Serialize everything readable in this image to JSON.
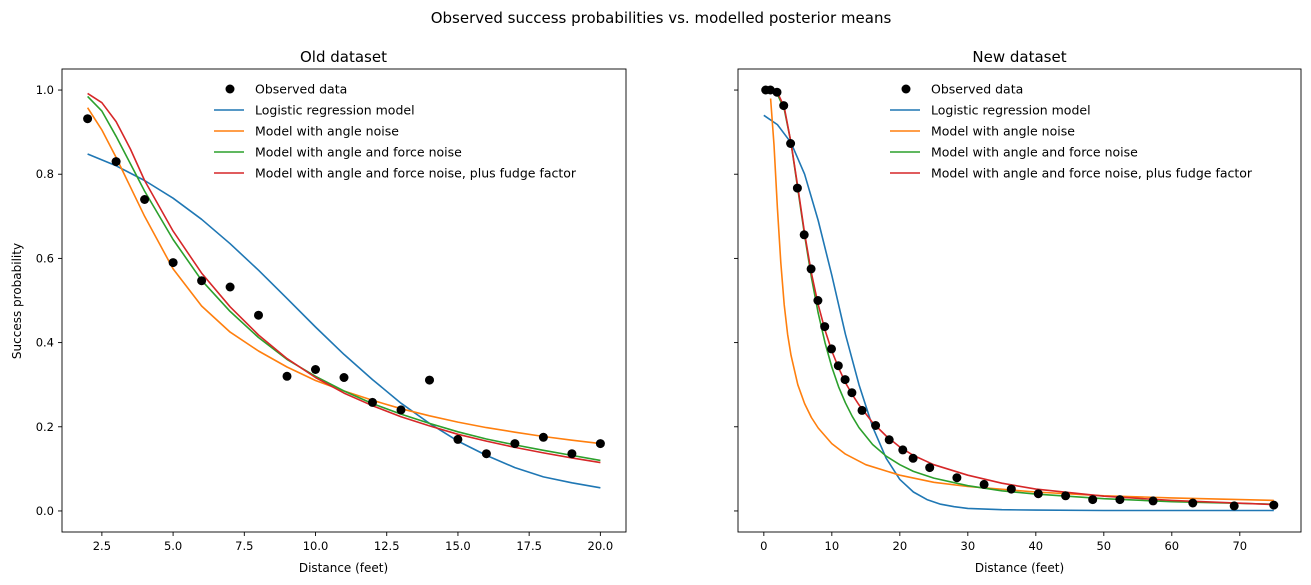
{
  "figure_title": "Observed success probabilities vs. modelled posterior means",
  "legend_labels": [
    "Observed data",
    "Logistic regression model",
    "Model with angle noise",
    "Model with angle and force noise",
    "Model with angle and force noise, plus fudge factor"
  ],
  "colors": {
    "observed": "#000000",
    "logistic": "#1f77b4",
    "angle": "#ff7f0e",
    "angle_force": "#2ca02c",
    "fudge": "#d62728"
  },
  "chart_data": [
    {
      "type": "line",
      "title": "Old dataset",
      "xlabel": "Distance (feet)",
      "ylabel": "Success probability",
      "xlim": [
        1.1,
        20.9
      ],
      "ylim": [
        -0.05,
        1.05
      ],
      "xticks": [
        2.5,
        5.0,
        7.5,
        10.0,
        12.5,
        15.0,
        17.5,
        20.0
      ],
      "xtick_labels": [
        "2.5",
        "5.0",
        "7.5",
        "10.0",
        "12.5",
        "15.0",
        "17.5",
        "20.0"
      ],
      "yticks": [
        0.0,
        0.2,
        0.4,
        0.6,
        0.8,
        1.0
      ],
      "ytick_labels": [
        "0.0",
        "0.2",
        "0.4",
        "0.6",
        "0.8",
        "1.0"
      ],
      "legend_position": "upper-center",
      "observed": {
        "x": [
          2,
          3,
          4,
          5,
          6,
          7,
          8,
          9,
          10,
          11,
          12,
          13,
          14,
          15,
          16,
          17,
          18,
          19,
          20
        ],
        "y": [
          0.932,
          0.83,
          0.74,
          0.59,
          0.547,
          0.532,
          0.465,
          0.32,
          0.336,
          0.317,
          0.258,
          0.24,
          0.311,
          0.17,
          0.136,
          0.16,
          0.175,
          0.136,
          0.16
        ]
      },
      "series": [
        {
          "key": "logistic",
          "x": [
            2,
            3,
            4,
            5,
            6,
            7,
            8,
            9,
            10,
            11,
            12,
            13,
            14,
            15,
            16,
            17,
            18,
            19,
            20
          ],
          "y": [
            0.848,
            0.82,
            0.785,
            0.743,
            0.693,
            0.635,
            0.572,
            0.505,
            0.437,
            0.372,
            0.312,
            0.256,
            0.208,
            0.166,
            0.132,
            0.103,
            0.081,
            0.067,
            0.055
          ]
        },
        {
          "key": "angle",
          "x": [
            2,
            2.5,
            3,
            4,
            5,
            6,
            7,
            8,
            9,
            10,
            11,
            12,
            13,
            14,
            15,
            16,
            17,
            18,
            19,
            20
          ],
          "y": [
            0.958,
            0.905,
            0.84,
            0.7,
            0.575,
            0.487,
            0.425,
            0.38,
            0.342,
            0.31,
            0.285,
            0.263,
            0.243,
            0.226,
            0.211,
            0.198,
            0.187,
            0.177,
            0.168,
            0.16
          ]
        },
        {
          "key": "angle_force",
          "x": [
            2,
            2.5,
            3,
            3.5,
            4,
            5,
            6,
            7,
            8,
            9,
            10,
            11,
            12,
            13,
            14,
            15,
            16,
            17,
            18,
            19,
            20
          ],
          "y": [
            0.985,
            0.95,
            0.89,
            0.825,
            0.76,
            0.645,
            0.548,
            0.474,
            0.412,
            0.36,
            0.32,
            0.285,
            0.255,
            0.23,
            0.208,
            0.188,
            0.171,
            0.157,
            0.144,
            0.132,
            0.12
          ]
        },
        {
          "key": "fudge",
          "x": [
            2,
            2.5,
            3,
            3.5,
            4,
            5,
            6,
            7,
            8,
            9,
            10,
            11,
            12,
            13,
            14,
            15,
            16,
            17,
            18,
            19,
            20
          ],
          "y": [
            0.992,
            0.97,
            0.925,
            0.86,
            0.785,
            0.665,
            0.565,
            0.485,
            0.418,
            0.362,
            0.317,
            0.28,
            0.25,
            0.224,
            0.202,
            0.182,
            0.166,
            0.151,
            0.138,
            0.126,
            0.115
          ]
        }
      ]
    },
    {
      "type": "line",
      "title": "New dataset",
      "xlabel": "Distance (feet)",
      "ylabel": "",
      "xlim": [
        -3.8,
        79.0
      ],
      "ylim": [
        -0.05,
        1.05
      ],
      "xticks": [
        0,
        10,
        20,
        30,
        40,
        50,
        60,
        70
      ],
      "xtick_labels": [
        "0",
        "10",
        "20",
        "30",
        "40",
        "50",
        "60",
        "70"
      ],
      "yticks": [
        0.0,
        0.2,
        0.4,
        0.6,
        0.8,
        1.0
      ],
      "ytick_labels": [],
      "legend_position": "upper-center",
      "observed": {
        "x": [
          0.28,
          0.97,
          1.93,
          2.92,
          3.93,
          4.94,
          5.94,
          6.95,
          7.95,
          8.95,
          9.95,
          10.95,
          11.95,
          12.95,
          14.43,
          16.43,
          18.44,
          20.44,
          21.95,
          24.39,
          28.4,
          32.39,
          36.39,
          40.37,
          44.38,
          48.37,
          52.36,
          57.25,
          63.08,
          69.18,
          75.0
        ],
        "y": [
          1.0,
          1.0,
          0.995,
          0.963,
          0.873,
          0.767,
          0.656,
          0.575,
          0.5,
          0.438,
          0.385,
          0.345,
          0.312,
          0.281,
          0.239,
          0.203,
          0.169,
          0.145,
          0.125,
          0.103,
          0.079,
          0.063,
          0.052,
          0.041,
          0.036,
          0.027,
          0.027,
          0.024,
          0.019,
          0.012,
          0.014
        ]
      },
      "series": [
        {
          "key": "logistic",
          "x": [
            0,
            2,
            4,
            6,
            8,
            10,
            12,
            14,
            16,
            18,
            20,
            22,
            24,
            26,
            28,
            30,
            35,
            40,
            50,
            60,
            75
          ],
          "y": [
            0.94,
            0.918,
            0.875,
            0.8,
            0.69,
            0.56,
            0.42,
            0.3,
            0.2,
            0.125,
            0.075,
            0.045,
            0.027,
            0.016,
            0.01,
            0.006,
            0.003,
            0.002,
            0.001,
            0.001,
            0.001
          ]
        },
        {
          "key": "angle",
          "x": [
            1,
            1.5,
            2,
            2.5,
            3,
            3.5,
            4,
            5,
            6,
            7,
            8,
            10,
            12,
            15,
            20,
            25,
            30,
            40,
            50,
            60,
            75
          ],
          "y": [
            0.98,
            0.87,
            0.72,
            0.59,
            0.49,
            0.42,
            0.37,
            0.3,
            0.255,
            0.222,
            0.197,
            0.16,
            0.135,
            0.11,
            0.085,
            0.068,
            0.058,
            0.045,
            0.036,
            0.031,
            0.025
          ]
        },
        {
          "key": "angle_force",
          "x": [
            2,
            3,
            4,
            5,
            6,
            7,
            8,
            9,
            10,
            11,
            12,
            13,
            14,
            16,
            18,
            20,
            22,
            25,
            30,
            35,
            40,
            50,
            60,
            75
          ],
          "y": [
            0.99,
            0.955,
            0.875,
            0.765,
            0.655,
            0.555,
            0.47,
            0.4,
            0.342,
            0.295,
            0.257,
            0.225,
            0.198,
            0.158,
            0.13,
            0.11,
            0.094,
            0.078,
            0.06,
            0.048,
            0.04,
            0.029,
            0.022,
            0.016
          ]
        },
        {
          "key": "fudge",
          "x": [
            2,
            3,
            4,
            5,
            6,
            7,
            8,
            9,
            10,
            11,
            12,
            13,
            14,
            16,
            18,
            20,
            22,
            25,
            30,
            35,
            40,
            50,
            60,
            75
          ],
          "y": [
            0.995,
            0.96,
            0.875,
            0.77,
            0.66,
            0.565,
            0.49,
            0.43,
            0.38,
            0.34,
            0.305,
            0.277,
            0.252,
            0.21,
            0.178,
            0.152,
            0.132,
            0.11,
            0.085,
            0.066,
            0.052,
            0.035,
            0.025,
            0.015
          ]
        }
      ]
    }
  ]
}
